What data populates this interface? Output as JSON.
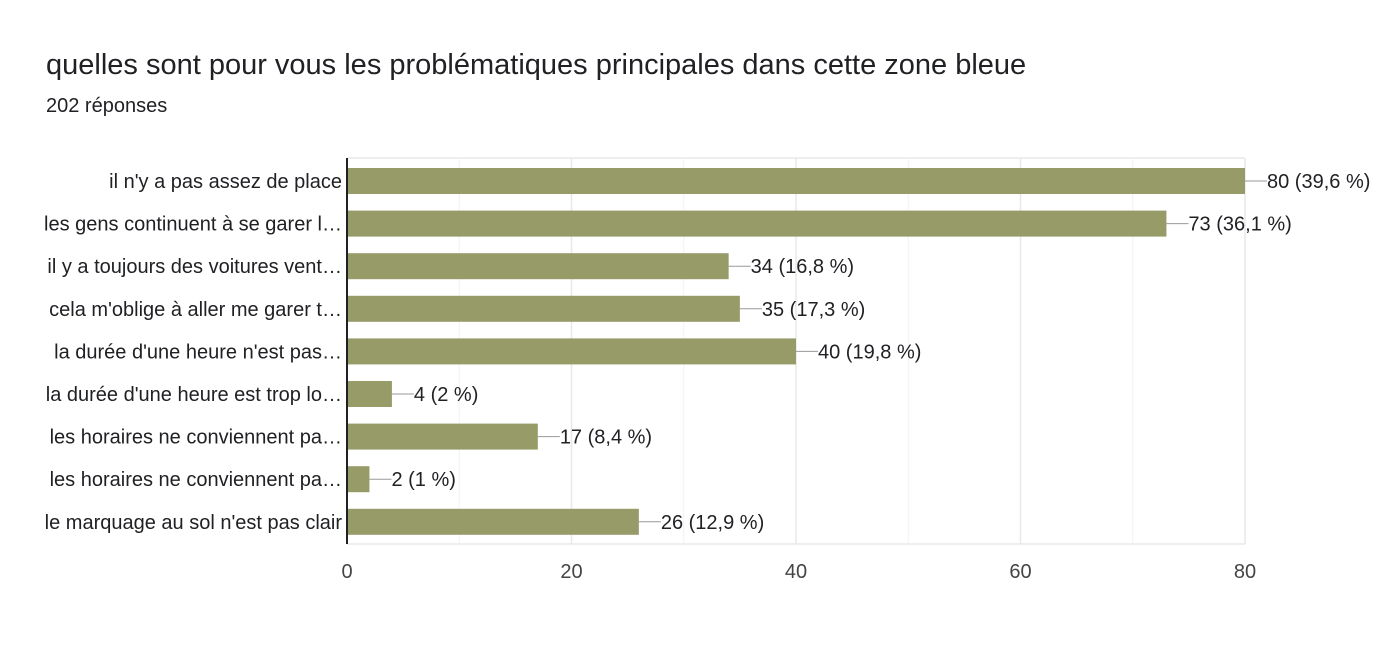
{
  "title": "quelles sont pour vous les problématiques principales dans cette zone bleue",
  "subtitle": "202 réponses",
  "chart_data": {
    "type": "bar",
    "orientation": "horizontal",
    "categories": [
      "il n'y a pas assez de place",
      "les gens continuent à se garer l…",
      "il y a toujours des voitures vent…",
      "cela m'oblige à aller me garer t…",
      "la durée d'une heure n'est pas…",
      "la durée d'une heure est trop lo…",
      "les horaires ne conviennent pa…",
      "les horaires ne conviennent pa…",
      "le marquage au sol n'est pas clair"
    ],
    "values": [
      80,
      73,
      34,
      35,
      40,
      4,
      17,
      2,
      26
    ],
    "value_labels": [
      "80 (39,6 %)",
      "73 (36,1 %)",
      "34 (16,8 %)",
      "35 (17,3 %)",
      "40 (19,8 %)",
      "4 (2 %)",
      "17 (8,4 %)",
      "2 (1 %)",
      "26 (12,9 %)"
    ],
    "xlim": [
      0,
      80
    ],
    "xticks": [
      0,
      20,
      40,
      60,
      80
    ],
    "grid": true,
    "bar_color": "#979b68",
    "grid_color": "#e8e8e8",
    "axis_color": "#202124"
  }
}
